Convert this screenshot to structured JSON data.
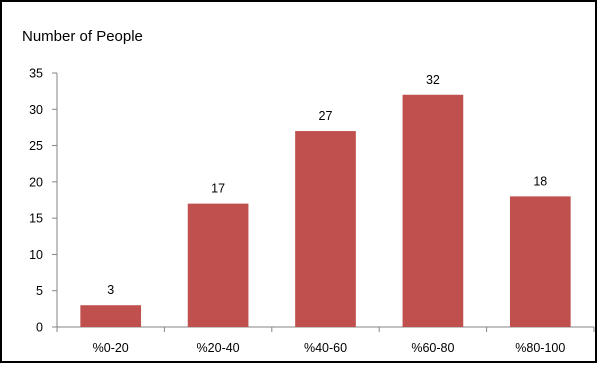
{
  "chart_data": {
    "type": "bar",
    "title": "Number of People",
    "xlabel": "",
    "ylabel": "",
    "categories": [
      "%0-20",
      "%20-40",
      "%40-60",
      "%60-80",
      "%80-100"
    ],
    "values": [
      3,
      17,
      27,
      32,
      18
    ],
    "data_labels": [
      "3",
      "17",
      "27",
      "32",
      "18"
    ],
    "ylim": [
      0,
      35
    ],
    "yticks": [
      0,
      5,
      10,
      15,
      20,
      25,
      30,
      35
    ],
    "grid": false,
    "legend": "none",
    "bar_color": "#C0504D",
    "axis_color": "#868686"
  }
}
